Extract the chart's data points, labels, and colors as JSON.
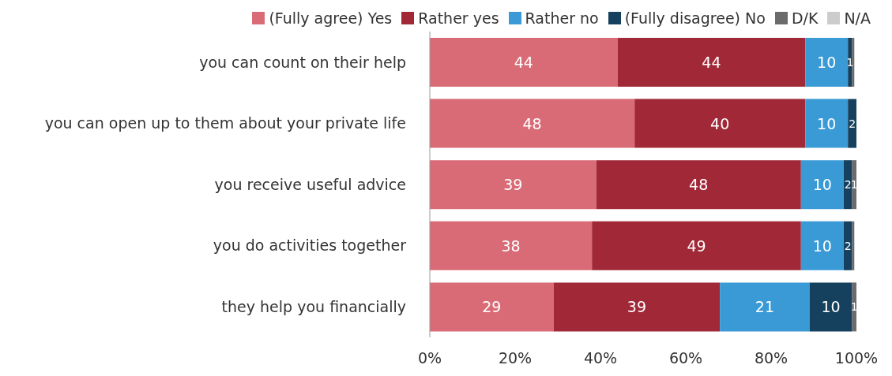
{
  "chart_data": {
    "type": "bar",
    "orientation": "horizontal",
    "stacked": true,
    "legend": "top",
    "categories": [
      "you can count on their help",
      "you can open up to them about your private life",
      "you receive useful advice",
      "you do activities together",
      "they help you financially"
    ],
    "series": [
      {
        "name": "(Fully agree) Yes",
        "color": "#d96b77",
        "values": [
          44,
          48,
          39,
          38,
          29
        ],
        "value_labels": [
          "44",
          "48",
          "39",
          "38",
          "29"
        ]
      },
      {
        "name": "Rather yes",
        "color": "#a12837",
        "values": [
          44,
          40,
          48,
          49,
          39
        ],
        "value_labels": [
          "44",
          "40",
          "48",
          "49",
          "39"
        ]
      },
      {
        "name": "Rather no",
        "color": "#3a9ad6",
        "values": [
          10,
          10,
          10,
          10,
          21
        ],
        "value_labels": [
          "10",
          "10",
          "10",
          "10",
          "21"
        ]
      },
      {
        "name": "(Fully disagree) No",
        "color": "#15415e",
        "values": [
          1,
          2,
          2,
          2,
          10
        ],
        "value_labels": [
          "1",
          "2",
          "2",
          "2",
          "10"
        ]
      },
      {
        "name": "D/K",
        "color": "#6b6b6b",
        "values": [
          0.5,
          0.3,
          1,
          0.5,
          1
        ],
        "value_labels": [
          null,
          null,
          "1",
          null,
          "1"
        ]
      },
      {
        "name": "N/A",
        "color": "#cccccc",
        "values": [
          0,
          0,
          0,
          0,
          0
        ],
        "value_labels": [
          null,
          null,
          null,
          null,
          null
        ]
      }
    ],
    "xlim": [
      0,
      100
    ],
    "xticks": [
      {
        "value": 0,
        "label": "0%"
      },
      {
        "value": 20,
        "label": "20%"
      },
      {
        "value": 40,
        "label": "40%"
      },
      {
        "value": 60,
        "label": "60%"
      },
      {
        "value": 80,
        "label": "80%"
      },
      {
        "value": 100,
        "label": "100%"
      }
    ]
  }
}
